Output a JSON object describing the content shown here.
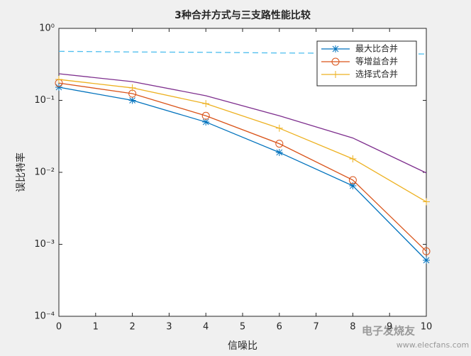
{
  "chart_data": {
    "type": "line",
    "title": "3种合并方式与三支路性能比较",
    "xlabel": "信噪比",
    "ylabel": "误比特率",
    "x": [
      0,
      2,
      4,
      6,
      8,
      10
    ],
    "xlim": [
      0,
      10
    ],
    "xticks": [
      0,
      1,
      2,
      3,
      4,
      5,
      6,
      7,
      8,
      9,
      10
    ],
    "ylim": [
      0.0001,
      1
    ],
    "yscale": "log",
    "yticks": [
      {
        "value": 0.0001,
        "label": "10⁻⁴"
      },
      {
        "value": 0.001,
        "label": "10⁻³"
      },
      {
        "value": 0.01,
        "label": "10⁻²"
      },
      {
        "value": 0.1,
        "label": "10⁻¹"
      },
      {
        "value": 1,
        "label": "10⁰"
      }
    ],
    "legend": "upper right",
    "series": [
      {
        "name": "最大比合并",
        "color": "#0072bd",
        "marker": "*",
        "values": [
          0.152,
          0.1,
          0.05,
          0.0189,
          0.0065,
          0.0006
        ]
      },
      {
        "name": "等增益合并",
        "color": "#d95319",
        "marker": "o",
        "values": [
          0.174,
          0.124,
          0.061,
          0.025,
          0.0078,
          0.0008
        ]
      },
      {
        "name": "选择式合并",
        "color": "#edb120",
        "marker": "+",
        "values": [
          0.195,
          0.149,
          0.09,
          0.041,
          0.0154,
          0.0039
        ]
      },
      {
        "color": "#7e2f8e",
        "marker": "none",
        "values": [
          0.234,
          0.182,
          0.116,
          0.061,
          0.03,
          0.0098
        ]
      },
      {
        "color": "#4dbeee",
        "marker": "none",
        "dash": true,
        "values": [
          0.48,
          0.47,
          0.465,
          0.455,
          0.45,
          0.44
        ]
      }
    ],
    "watermark": [
      "电子发烧友",
      "www.elecfans.com"
    ]
  }
}
